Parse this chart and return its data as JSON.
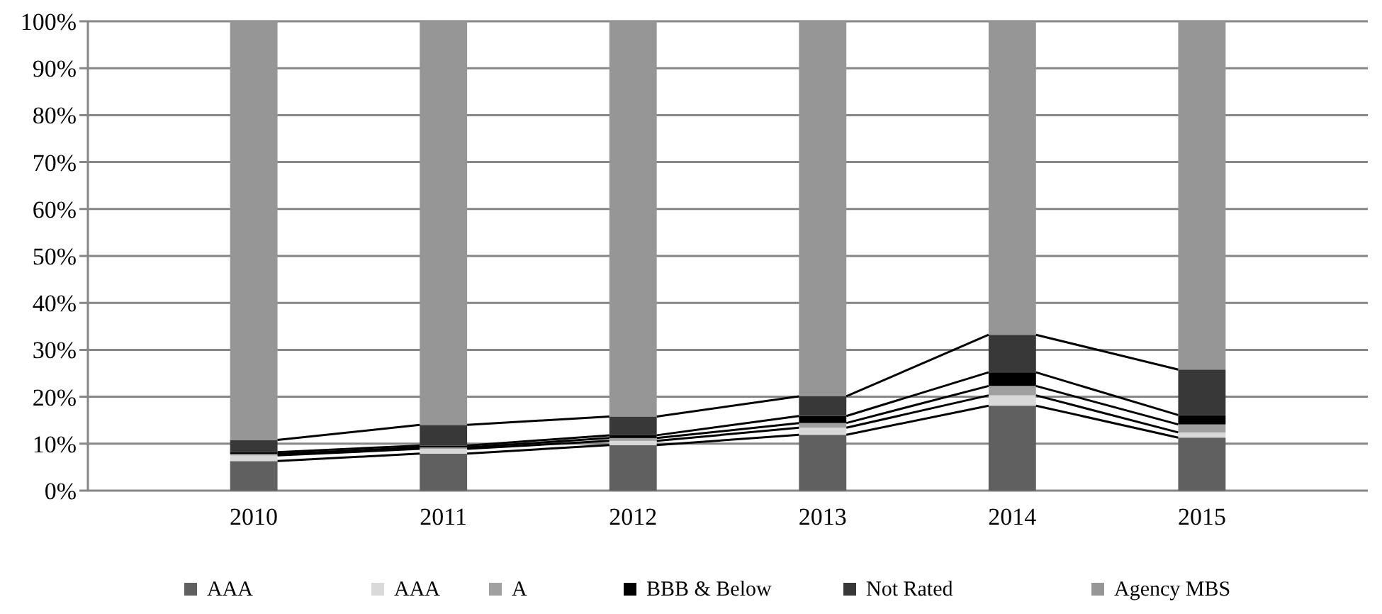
{
  "chart_data": {
    "type": "bar",
    "stacked": true,
    "categories": [
      "2010",
      "2011",
      "2012",
      "2013",
      "2014",
      "2015"
    ],
    "series": [
      {
        "name": "AAA",
        "color": "#606060",
        "values": [
          6.3,
          7.9,
          9.7,
          11.9,
          18.1,
          11.3
        ]
      },
      {
        "name": "AAA",
        "color": "#d9d9d9",
        "values": [
          1.2,
          1.0,
          0.9,
          1.5,
          2.2,
          1.1
        ]
      },
      {
        "name": "A",
        "color": "#a0a0a0",
        "values": [
          0.3,
          0.3,
          0.6,
          1.0,
          2.0,
          1.7
        ]
      },
      {
        "name": "BBB & Below",
        "color": "#000000",
        "values": [
          0.4,
          0.4,
          0.6,
          1.5,
          2.9,
          2.0
        ]
      },
      {
        "name": "Not Rated",
        "color": "#383838",
        "values": [
          2.6,
          4.4,
          4.0,
          4.2,
          8.0,
          9.7
        ]
      },
      {
        "name": "Agency MBS",
        "color": "#969696",
        "values": [
          89.2,
          86.0,
          84.2,
          79.9,
          66.8,
          74.2
        ]
      }
    ],
    "ylim": [
      0,
      100
    ],
    "yticks": [
      {
        "value": 0,
        "label": "0%"
      },
      {
        "value": 10,
        "label": "10%"
      },
      {
        "value": 20,
        "label": "20%"
      },
      {
        "value": 30,
        "label": "30%"
      },
      {
        "value": 40,
        "label": "40%"
      },
      {
        "value": 50,
        "label": "50%"
      },
      {
        "value": 60,
        "label": "60%"
      },
      {
        "value": 70,
        "label": "70%"
      },
      {
        "value": 80,
        "label": "80%"
      },
      {
        "value": 90,
        "label": "90%"
      },
      {
        "value": 100,
        "label": "100%"
      }
    ],
    "grid": "y",
    "legend": "bottom"
  }
}
